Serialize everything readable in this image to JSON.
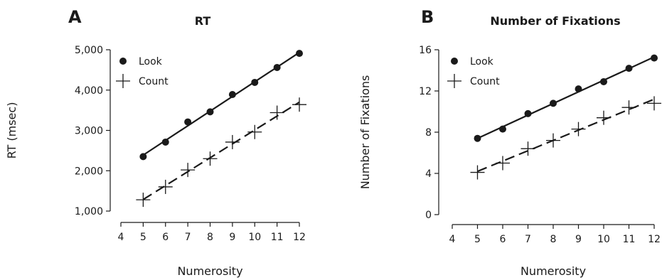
{
  "chart_data": [
    {
      "type": "scatter",
      "panel_letter": "A",
      "title": "RT",
      "xlabel": "Numerosity",
      "ylabel": "RT (msec)",
      "xlim": [
        4,
        12
      ],
      "ylim": [
        1000,
        5000
      ],
      "x_ticks": [
        4,
        5,
        6,
        7,
        8,
        9,
        10,
        11,
        12
      ],
      "y_ticks": [
        1000,
        2000,
        3000,
        4000,
        5000
      ],
      "y_tick_labels": [
        "1,000",
        "2,000",
        "3,000",
        "4,000",
        "5,000"
      ],
      "legend_position": "top-left",
      "grid": false,
      "series": [
        {
          "name": "Look",
          "marker": "dot",
          "fit_line": "solid",
          "x": [
            5,
            6,
            7,
            8,
            9,
            10,
            11,
            12
          ],
          "y": [
            2350,
            2710,
            3210,
            3460,
            3890,
            4190,
            4560,
            4910
          ]
        },
        {
          "name": "Count",
          "marker": "plus",
          "fit_line": "dashed",
          "x": [
            5,
            6,
            7,
            8,
            9,
            10,
            11,
            12
          ],
          "y": [
            1280,
            1600,
            2020,
            2300,
            2710,
            2960,
            3440,
            3640
          ]
        }
      ]
    },
    {
      "type": "scatter",
      "panel_letter": "B",
      "title": "Number of Fixations",
      "xlabel": "Numerosity",
      "ylabel": "Number of Fixations",
      "xlim": [
        4,
        12
      ],
      "ylim": [
        0,
        16
      ],
      "x_ticks": [
        4,
        5,
        6,
        7,
        8,
        9,
        10,
        11,
        12
      ],
      "y_ticks": [
        0,
        4,
        8,
        12,
        16
      ],
      "y_tick_labels": [
        "0",
        "4",
        "8",
        "12",
        "16"
      ],
      "legend_position": "top-left",
      "grid": false,
      "series": [
        {
          "name": "Look",
          "marker": "dot",
          "fit_line": "solid",
          "x": [
            5,
            6,
            7,
            8,
            9,
            10,
            11,
            12
          ],
          "y": [
            7.4,
            8.3,
            9.8,
            10.8,
            12.2,
            12.9,
            14.2,
            15.2
          ]
        },
        {
          "name": "Count",
          "marker": "plus",
          "fit_line": "dashed",
          "x": [
            5,
            6,
            7,
            8,
            9,
            10,
            11,
            12
          ],
          "y": [
            4.1,
            5.0,
            6.4,
            7.2,
            8.3,
            9.4,
            10.4,
            10.8
          ]
        }
      ]
    }
  ]
}
